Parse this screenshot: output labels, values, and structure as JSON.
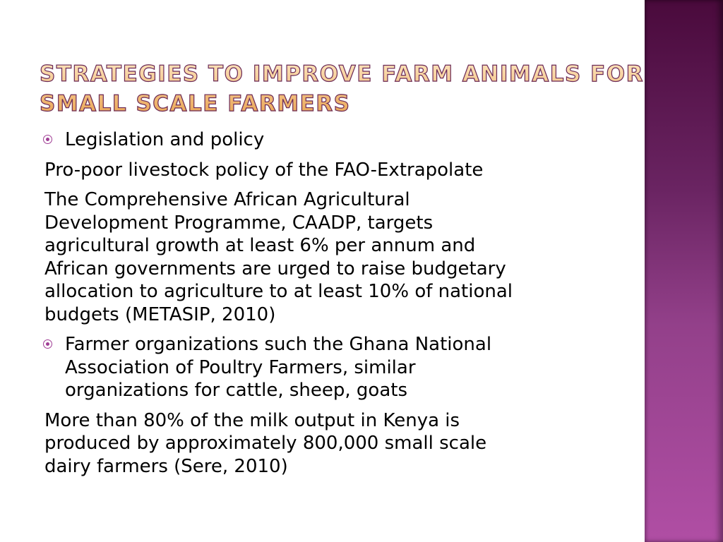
{
  "slide": {
    "title_lines": [
      "Strategies to improve farm animals for",
      "small scale farmers"
    ],
    "accent_color": "#a03e95",
    "side_bar_colors": [
      "#4a0a3c",
      "#b04ea4"
    ],
    "paragraphs": [
      {
        "bullet": true,
        "lines": [
          "Legislation and policy"
        ]
      },
      {
        "bullet": false,
        "lines": [
          "Pro-poor livestock policy of the FAO-Extrapolate"
        ]
      },
      {
        "bullet": false,
        "lines": [
          "The Comprehensive African Agricultural",
          "Development Programme, CAADP, targets",
          "agricultural growth  at  least 6% per annum and",
          "African governments are urged to raise budgetary",
          "allocation to agriculture to at least 10% of national",
          "budgets (METASIP, 2010)"
        ]
      },
      {
        "bullet": true,
        "lines": [
          "Farmer organizations such the Ghana National",
          "Association of Poultry  Farmers, similar",
          "organizations for cattle, sheep, goats"
        ]
      },
      {
        "bullet": false,
        "lines": [
          "More than 80% of the milk output in Kenya is",
          "produced by approximately 800,000 small scale",
          "dairy farmers (Sere, 2010)"
        ]
      }
    ]
  }
}
